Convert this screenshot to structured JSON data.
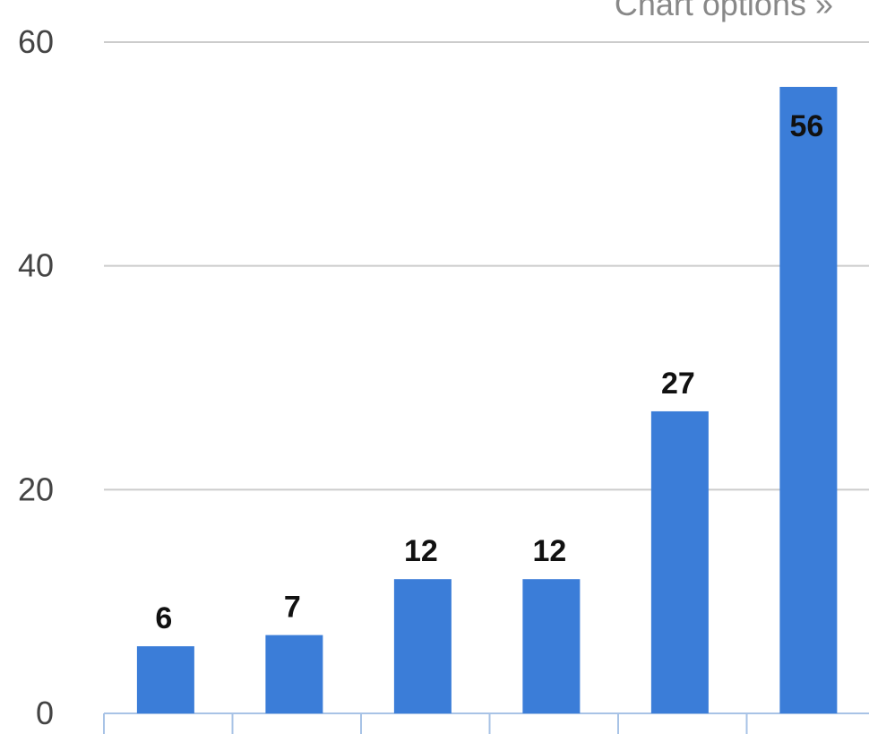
{
  "header": {
    "chart_options_label": "Chart options »"
  },
  "chart_data": {
    "type": "bar",
    "categories": [
      "",
      "",
      "",
      "",
      "",
      ""
    ],
    "values": [
      6,
      7,
      12,
      12,
      27,
      56
    ],
    "ylim": [
      0,
      60
    ],
    "yticks": [
      0,
      20,
      40,
      60
    ],
    "title": "",
    "xlabel": "",
    "ylabel": "",
    "grid": true,
    "legend": "none",
    "bar_color": "#3b7dd8",
    "grid_color": "#cccccc",
    "axis_color": "#a8c3e6"
  }
}
